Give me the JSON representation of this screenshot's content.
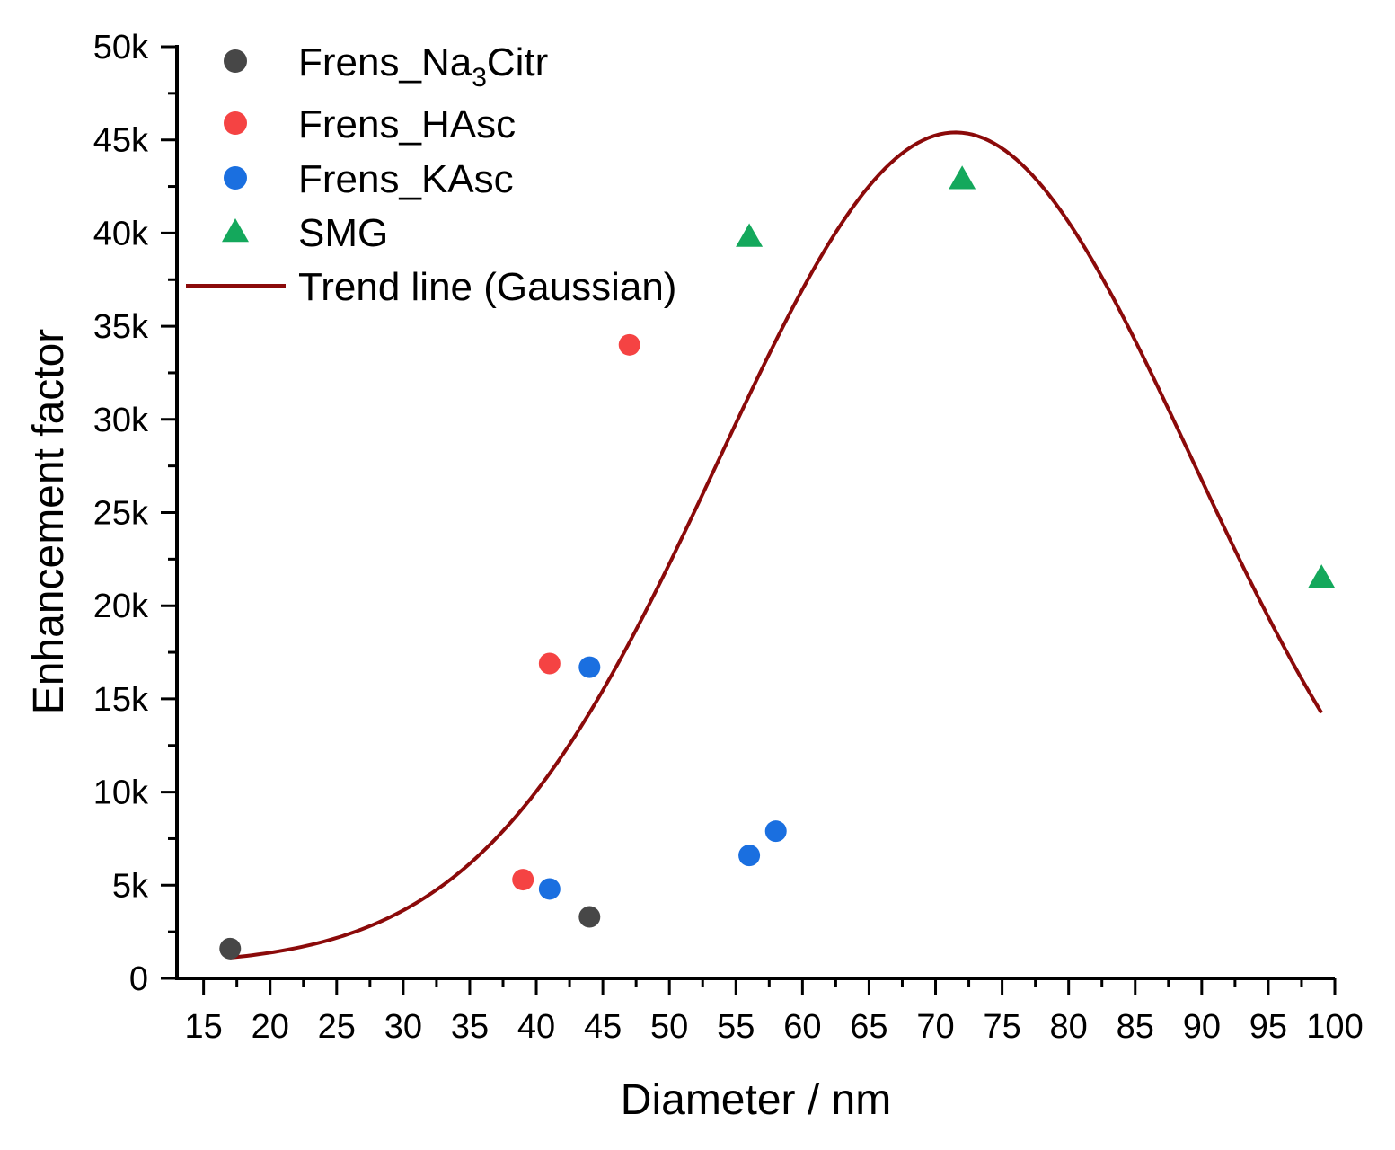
{
  "chart_data": {
    "type": "scatter",
    "title": "",
    "xlabel": "Diameter / nm",
    "ylabel": "Enhancement factor",
    "xlim": [
      13,
      100
    ],
    "ylim": [
      0,
      50000
    ],
    "xticks": [
      15,
      20,
      25,
      30,
      35,
      40,
      45,
      50,
      55,
      60,
      65,
      70,
      75,
      80,
      85,
      90,
      95,
      100
    ],
    "yticks": [
      0,
      5000,
      10000,
      15000,
      20000,
      25000,
      30000,
      35000,
      40000,
      45000,
      50000
    ],
    "ytick_labels": [
      "0",
      "5k",
      "10k",
      "15k",
      "20k",
      "25k",
      "30k",
      "35k",
      "40k",
      "45k",
      "50k"
    ],
    "legend_position": "top-left",
    "series": [
      {
        "name": "Frens_Na3Citr",
        "legend_main": "Frens_Na",
        "legend_sub": "3",
        "legend_tail": "Citr",
        "marker": "circle",
        "color": "#474747",
        "points": [
          [
            17,
            1600
          ],
          [
            44,
            3300
          ]
        ]
      },
      {
        "name": "Frens_HAsc",
        "marker": "circle",
        "color": "#f54343",
        "points": [
          [
            39,
            5300
          ],
          [
            41,
            16900
          ],
          [
            47,
            34000
          ]
        ]
      },
      {
        "name": "Frens_KAsc",
        "marker": "circle",
        "color": "#1a6fe0",
        "points": [
          [
            41,
            4800
          ],
          [
            44,
            16700
          ],
          [
            56,
            6600
          ],
          [
            58,
            7900
          ]
        ]
      },
      {
        "name": "SMG",
        "marker": "triangle",
        "color": "#14a85c",
        "points": [
          [
            56,
            39800
          ],
          [
            72,
            42900
          ],
          [
            99,
            21500
          ]
        ]
      }
    ],
    "trend_line": {
      "name": "Trend line (Gaussian)",
      "type": "gaussian",
      "color": "#8b0a0a",
      "x_range": [
        17,
        99
      ],
      "y0": 700,
      "amplitude": 44700,
      "center": 71.5,
      "sigma": 17.8
    }
  }
}
